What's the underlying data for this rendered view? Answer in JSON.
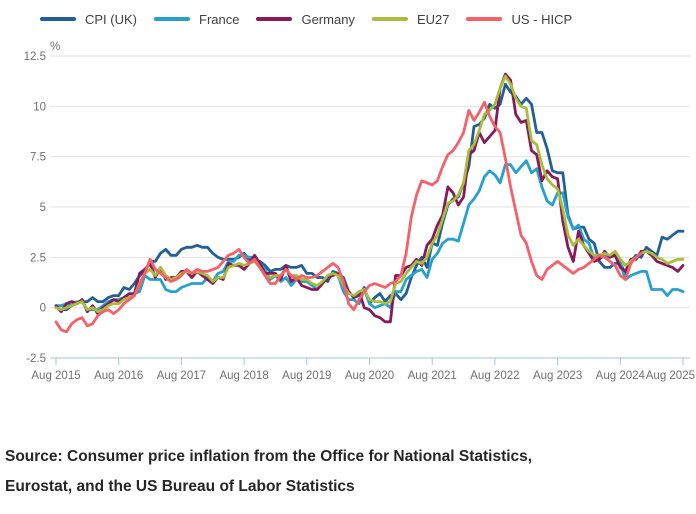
{
  "footer": {
    "source_line1": "Source: Consumer price inflation from the Office for National Statistics,",
    "source_line2": "Eurostat, and the US Bureau of Labor Statistics"
  },
  "chart_data": {
    "type": "line",
    "title": "",
    "unit_label": "%",
    "xlabel": "",
    "ylabel": "%",
    "ylim": [
      -2.5,
      12.5
    ],
    "yticks": [
      12.5,
      10,
      7.5,
      5,
      2.5,
      0,
      -2.5
    ],
    "ytick_labels": [
      "12.5",
      "10",
      "7.5",
      "5",
      "2.5",
      "0",
      "-2.5"
    ],
    "x_tick_labels": [
      "Aug 2015",
      "Aug 2016",
      "Aug 2017",
      "Aug 2018",
      "Aug 2019",
      "Aug 2020",
      "Aug 2021",
      "Aug 2022",
      "Aug 2023",
      "Aug 2024",
      "Aug 2025"
    ],
    "x_start": "Aug 2015",
    "x_end": "Aug 2025",
    "x_frequency": "monthly",
    "grid": "horizontal",
    "legend_position": "top",
    "colors": {
      "grid": "#e2e2e2",
      "axis": "#a6c3d8",
      "axis_text": "#707071"
    },
    "series": [
      {
        "name": "CPI (UK)",
        "color": "#206095",
        "values": [
          0.0,
          -0.1,
          -0.1,
          0.1,
          0.2,
          0.3,
          0.3,
          0.5,
          0.3,
          0.3,
          0.5,
          0.6,
          0.6,
          1.0,
          0.9,
          1.2,
          1.6,
          1.8,
          2.3,
          2.3,
          2.7,
          2.9,
          2.6,
          2.6,
          2.9,
          3.0,
          3.0,
          3.1,
          3.0,
          3.0,
          2.7,
          2.5,
          2.4,
          2.4,
          2.4,
          2.5,
          2.7,
          2.4,
          2.4,
          2.3,
          2.1,
          1.8,
          1.9,
          1.9,
          2.1,
          2.0,
          2.0,
          2.1,
          1.7,
          1.7,
          1.5,
          1.5,
          1.3,
          1.8,
          1.7,
          1.5,
          0.8,
          0.5,
          0.6,
          1.0,
          0.2,
          0.5,
          0.7,
          0.3,
          0.6,
          0.7,
          0.4,
          0.7,
          1.5,
          2.1,
          2.5,
          2.0,
          3.2,
          3.1,
          4.2,
          5.1,
          5.4,
          5.5,
          6.2,
          7.0,
          9.0,
          9.1,
          9.4,
          10.1,
          9.9,
          10.1,
          11.1,
          10.7,
          10.5,
          10.1,
          10.4,
          10.1,
          8.7,
          8.7,
          7.9,
          6.8,
          6.7,
          6.7,
          4.6,
          3.9,
          4.0,
          4.0,
          3.4,
          3.2,
          2.3,
          2.0,
          2.0,
          2.2,
          2.2,
          1.7,
          2.3,
          2.6,
          2.5,
          3.0,
          2.8,
          2.6,
          3.5,
          3.4,
          3.6,
          3.8,
          3.8
        ]
      },
      {
        "name": "France",
        "color": "#27a0cc",
        "values": [
          0.1,
          0.1,
          0.2,
          0.1,
          0.3,
          0.3,
          -0.1,
          -0.1,
          -0.1,
          0.1,
          0.3,
          0.4,
          0.4,
          0.5,
          0.5,
          0.7,
          0.8,
          1.6,
          1.4,
          1.4,
          1.4,
          0.9,
          0.8,
          0.8,
          1.0,
          1.1,
          1.2,
          1.2,
          1.2,
          1.5,
          1.3,
          1.7,
          1.8,
          2.3,
          2.3,
          2.6,
          2.6,
          2.5,
          2.5,
          2.2,
          1.9,
          1.4,
          1.6,
          1.3,
          1.5,
          1.1,
          1.4,
          1.3,
          1.3,
          1.1,
          0.9,
          1.2,
          1.6,
          1.7,
          1.6,
          0.8,
          0.4,
          0.4,
          0.2,
          0.9,
          0.2,
          0.0,
          0.1,
          0.2,
          0.0,
          0.8,
          0.8,
          1.4,
          1.6,
          1.8,
          1.9,
          1.5,
          2.4,
          2.7,
          3.2,
          3.4,
          3.4,
          3.3,
          4.2,
          5.1,
          5.4,
          5.8,
          6.5,
          6.8,
          6.6,
          6.2,
          7.1,
          7.1,
          6.7,
          7.0,
          7.3,
          6.7,
          6.9,
          6.0,
          5.3,
          5.1,
          5.7,
          5.7,
          4.5,
          3.9,
          4.1,
          3.4,
          3.2,
          2.4,
          2.4,
          2.6,
          2.5,
          2.7,
          2.2,
          1.4,
          1.6,
          1.7,
          1.8,
          1.8,
          0.9,
          0.9,
          0.9,
          0.6,
          0.9,
          0.9,
          0.8
        ]
      },
      {
        "name": "Germany",
        "color": "#871a5b",
        "values": [
          0.1,
          -0.2,
          0.2,
          0.3,
          0.2,
          0.4,
          -0.2,
          0.1,
          -0.3,
          0.0,
          0.2,
          0.4,
          0.3,
          0.5,
          0.7,
          0.7,
          1.7,
          1.9,
          2.2,
          1.5,
          2.0,
          1.4,
          1.5,
          1.5,
          1.8,
          1.8,
          1.5,
          1.8,
          1.6,
          1.4,
          1.2,
          1.5,
          1.4,
          2.2,
          2.1,
          2.1,
          1.9,
          2.2,
          2.6,
          2.2,
          1.7,
          1.7,
          1.7,
          1.4,
          2.1,
          1.3,
          1.5,
          1.1,
          1.0,
          0.9,
          0.9,
          1.2,
          1.5,
          1.6,
          1.7,
          1.3,
          0.8,
          0.5,
          0.8,
          0.0,
          -0.1,
          -0.4,
          -0.5,
          -0.7,
          -0.7,
          1.6,
          1.6,
          2.0,
          2.1,
          2.4,
          2.1,
          3.1,
          3.4,
          4.1,
          4.6,
          6.0,
          5.7,
          5.1,
          5.5,
          7.6,
          7.8,
          8.7,
          8.2,
          8.5,
          8.8,
          10.9,
          11.6,
          11.3,
          9.6,
          9.2,
          9.3,
          7.8,
          7.6,
          6.3,
          6.8,
          6.5,
          6.4,
          4.3,
          3.0,
          2.3,
          3.8,
          3.1,
          2.7,
          2.3,
          2.4,
          2.8,
          2.5,
          2.6,
          2.0,
          1.8,
          2.4,
          2.4,
          2.8,
          2.8,
          2.6,
          2.3,
          2.2,
          2.1,
          2.0,
          1.8,
          2.1
        ]
      },
      {
        "name": "EU27",
        "color": "#a8bd3a",
        "values": [
          0.0,
          -0.1,
          0.0,
          0.1,
          0.2,
          0.3,
          -0.1,
          0.0,
          -0.2,
          -0.1,
          0.1,
          0.2,
          0.2,
          0.4,
          0.5,
          0.6,
          1.2,
          1.7,
          1.9,
          1.6,
          2.0,
          1.6,
          1.4,
          1.5,
          1.7,
          1.8,
          1.7,
          1.8,
          1.7,
          1.6,
          1.3,
          1.5,
          1.5,
          2.0,
          2.1,
          2.2,
          2.1,
          2.2,
          2.3,
          2.0,
          1.6,
          1.5,
          1.6,
          1.6,
          1.9,
          1.6,
          1.6,
          1.4,
          1.4,
          1.2,
          1.1,
          1.3,
          1.6,
          1.7,
          1.6,
          1.1,
          0.7,
          0.6,
          0.8,
          0.9,
          0.4,
          0.3,
          0.3,
          0.2,
          0.3,
          1.2,
          1.3,
          1.7,
          2.0,
          2.3,
          2.2,
          2.5,
          3.2,
          3.6,
          4.4,
          5.2,
          5.3,
          5.6,
          6.2,
          7.8,
          8.1,
          8.8,
          9.6,
          9.8,
          10.1,
          10.9,
          11.5,
          11.1,
          10.4,
          10.0,
          9.9,
          8.3,
          8.1,
          7.1,
          6.4,
          6.1,
          5.9,
          4.9,
          3.6,
          3.1,
          3.4,
          3.1,
          2.8,
          2.6,
          2.6,
          2.7,
          2.6,
          2.8,
          2.4,
          2.1,
          2.3,
          2.5,
          2.7,
          2.8,
          2.7,
          2.5,
          2.4,
          2.2,
          2.3,
          2.4,
          2.4
        ]
      },
      {
        "name": "US - HICP",
        "color": "#f66068",
        "values": [
          -0.7,
          -1.1,
          -1.2,
          -0.8,
          -0.6,
          -0.5,
          -0.9,
          -0.8,
          -0.4,
          -0.2,
          -0.1,
          -0.3,
          -0.1,
          0.2,
          0.4,
          0.6,
          1.1,
          1.7,
          2.4,
          1.9,
          1.7,
          1.5,
          1.3,
          1.4,
          1.6,
          1.9,
          1.7,
          1.9,
          1.8,
          1.8,
          1.9,
          2.0,
          2.3,
          2.6,
          2.7,
          2.9,
          2.5,
          2.2,
          2.4,
          2.0,
          1.6,
          1.2,
          1.2,
          1.6,
          1.9,
          1.6,
          1.4,
          1.6,
          1.5,
          1.5,
          1.6,
          1.8,
          2.0,
          2.2,
          2.0,
          1.3,
          0.2,
          -0.1,
          0.4,
          0.8,
          1.1,
          1.2,
          1.1,
          1.0,
          1.2,
          1.3,
          1.6,
          2.7,
          4.5,
          5.6,
          6.3,
          6.2,
          6.1,
          6.3,
          7.0,
          7.6,
          7.8,
          8.2,
          8.7,
          9.8,
          9.3,
          9.7,
          10.2,
          9.5,
          9.0,
          8.7,
          7.4,
          6.0,
          4.8,
          3.6,
          3.2,
          2.3,
          1.6,
          1.4,
          1.9,
          2.1,
          2.3,
          2.1,
          1.9,
          1.7,
          1.9,
          2.0,
          2.2,
          2.4,
          2.6,
          2.5,
          2.3,
          2.1,
          1.6,
          1.4,
          2.2,
          2.5,
          2.7
        ]
      }
    ]
  }
}
